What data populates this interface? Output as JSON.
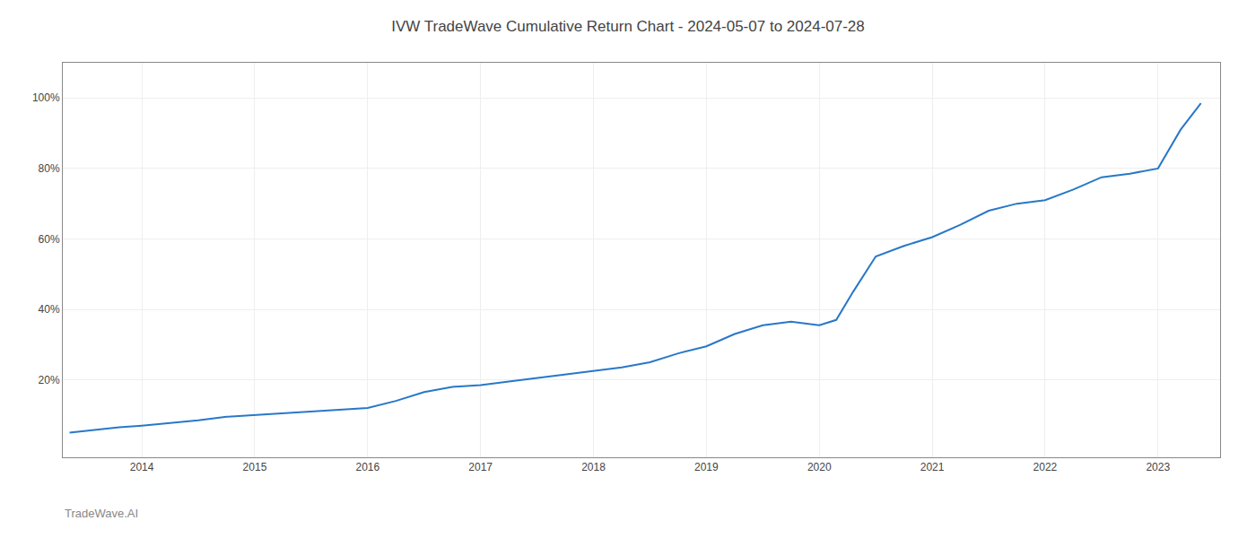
{
  "chart_data": {
    "type": "line",
    "title": "IVW TradeWave Cumulative Return Chart - 2024-05-07 to 2024-07-28",
    "annotations": [
      "TradeWave.AI"
    ],
    "color": "#2878c8",
    "grid": true,
    "x": [
      2013.36,
      2013.5,
      2013.65,
      2013.8,
      2014.0,
      2014.25,
      2014.5,
      2014.75,
      2015.0,
      2015.25,
      2015.5,
      2015.75,
      2016.0,
      2016.25,
      2016.5,
      2016.75,
      2017.0,
      2017.25,
      2017.5,
      2017.75,
      2018.0,
      2018.25,
      2018.5,
      2018.75,
      2019.0,
      2019.25,
      2019.5,
      2019.75,
      2020.0,
      2020.15,
      2020.3,
      2020.5,
      2020.75,
      2021.0,
      2021.25,
      2021.5,
      2021.75,
      2022.0,
      2022.25,
      2022.5,
      2022.75,
      2023.0,
      2023.2,
      2023.38
    ],
    "values": [
      5.0,
      5.5,
      6.0,
      6.5,
      7.0,
      7.8,
      8.5,
      9.5,
      10.0,
      10.5,
      11.0,
      11.5,
      12.0,
      14.0,
      16.5,
      18.0,
      18.5,
      19.5,
      20.5,
      21.5,
      22.5,
      23.5,
      25.0,
      27.5,
      29.5,
      33.0,
      35.5,
      36.5,
      35.5,
      37.0,
      45.0,
      55.0,
      58.0,
      60.5,
      64.0,
      68.0,
      70.0,
      71.0,
      74.0,
      77.5,
      78.5,
      80.0,
      91.0,
      98.5
    ],
    "xlim": [
      2013.3,
      2023.55
    ],
    "xticks": [
      2014,
      2015,
      2016,
      2017,
      2018,
      2019,
      2020,
      2021,
      2022,
      2023
    ],
    "ylim": [
      -2,
      110
    ],
    "yticks": [
      {
        "value": 20,
        "label": "20%"
      },
      {
        "value": 40,
        "label": "40%"
      },
      {
        "value": 60,
        "label": "60%"
      },
      {
        "value": 80,
        "label": "80%"
      },
      {
        "value": 100,
        "label": "100%"
      }
    ]
  }
}
